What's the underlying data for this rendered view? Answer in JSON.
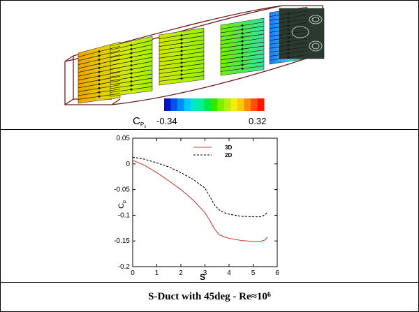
{
  "figure": {
    "caption_main": "S-Duct with 45deg -  Re≈10",
    "caption_exp": "6"
  },
  "contour": {
    "colorbar_label": "C",
    "colorbar_sub": "P",
    "colorbar_subsub": "s",
    "colorbar_min": "-0.34",
    "colorbar_max": "0.32",
    "colorbar_colors": [
      "#0014c8",
      "#0050ff",
      "#008cff",
      "#00c8ff",
      "#00e6c8",
      "#00f096",
      "#00e650",
      "#32e600",
      "#78f000",
      "#b4f000",
      "#f0f000",
      "#ffc800",
      "#ff8c00",
      "#ff5000",
      "#ff1400"
    ],
    "plane_colors": {
      "p1": [
        "#f0a000",
        "#e6c800",
        "#d2e600"
      ],
      "p2": [
        "#e6dc00",
        "#c8f000",
        "#a0f000"
      ],
      "p3": [
        "#d2e600",
        "#b4f000",
        "#96f000"
      ],
      "p4": [
        "#78f000",
        "#50e650",
        "#32e6a0"
      ],
      "p5": [
        "#1e78ff",
        "#32c8e6",
        "#50e696"
      ]
    }
  },
  "chart_data": {
    "type": "line",
    "xlabel": "S",
    "ylabel": "C",
    "ylabel_sub": "p",
    "xlim": [
      0,
      6
    ],
    "ylim": [
      -0.2,
      0.05
    ],
    "xticks": [
      "0",
      "1",
      "2",
      "3",
      "4",
      "5",
      "6"
    ],
    "yticks": [
      "-0.2",
      "-0.15",
      "-0.1",
      "-0.05",
      "0",
      "0.05"
    ],
    "series": [
      {
        "name": "3D",
        "color": "#c8413c",
        "style": "solid",
        "x": [
          0,
          0.5,
          1.0,
          1.5,
          2.0,
          2.5,
          3.0,
          3.2,
          3.4,
          3.6,
          3.8,
          4.0,
          4.5,
          5.0,
          5.3,
          5.5,
          5.6
        ],
        "y": [
          0.007,
          -0.003,
          -0.017,
          -0.033,
          -0.05,
          -0.07,
          -0.095,
          -0.11,
          -0.127,
          -0.138,
          -0.142,
          -0.145,
          -0.149,
          -0.151,
          -0.151,
          -0.148,
          -0.142
        ]
      },
      {
        "name": "2D",
        "color": "#000000",
        "style": "dashed",
        "x": [
          0,
          0.5,
          1.0,
          1.5,
          2.0,
          2.5,
          3.0,
          3.2,
          3.4,
          3.6,
          3.8,
          4.0,
          4.5,
          5.0,
          5.3,
          5.5,
          5.6
        ],
        "y": [
          0.013,
          0.009,
          0.002,
          -0.006,
          -0.017,
          -0.03,
          -0.047,
          -0.063,
          -0.08,
          -0.09,
          -0.095,
          -0.098,
          -0.102,
          -0.103,
          -0.103,
          -0.099,
          -0.093
        ]
      }
    ]
  }
}
